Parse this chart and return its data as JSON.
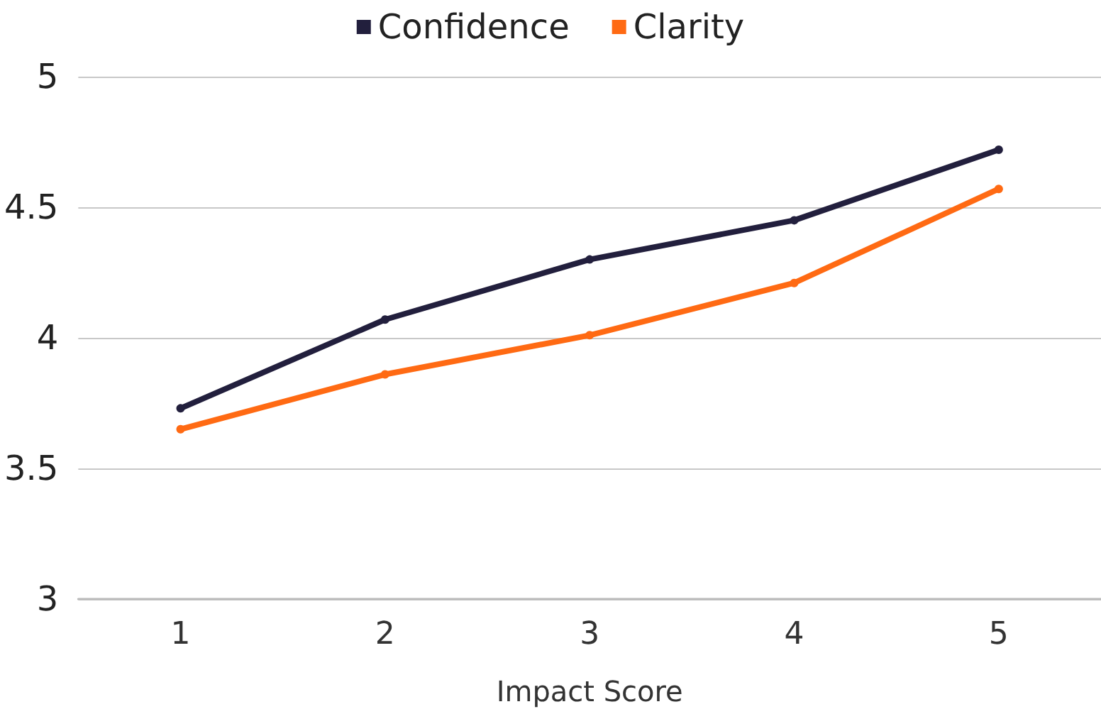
{
  "chart_data": {
    "type": "line",
    "xlabel": "Impact Score",
    "categories": [
      "1",
      "2",
      "3",
      "4",
      "5"
    ],
    "series": [
      {
        "name": "Confidence",
        "color": "#221f3d",
        "values": [
          3.73,
          4.07,
          4.3,
          4.45,
          4.72
        ]
      },
      {
        "name": "Clarity",
        "color": "#ff6a13",
        "values": [
          3.65,
          3.86,
          4.01,
          4.21,
          4.57
        ]
      }
    ],
    "ylim": [
      3,
      5
    ],
    "yticks": [
      3,
      3.5,
      4,
      4.5,
      5
    ],
    "grid": "y",
    "legend": "top",
    "marker": "circle",
    "line_style": "solid"
  }
}
